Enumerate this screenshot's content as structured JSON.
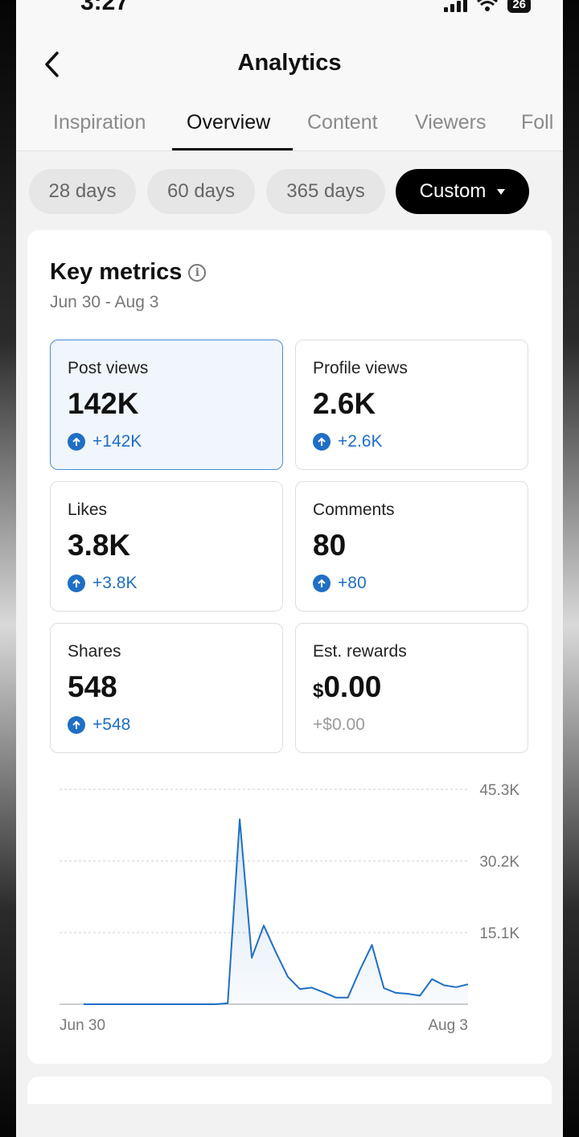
{
  "status": {
    "time": "3:27",
    "battery": "26"
  },
  "header": {
    "title": "Analytics"
  },
  "tabs": [
    {
      "label": "Inspiration"
    },
    {
      "label": "Overview"
    },
    {
      "label": "Content"
    },
    {
      "label": "Viewers"
    },
    {
      "label": "Foll"
    }
  ],
  "filters": [
    {
      "label": "28 days"
    },
    {
      "label": "60 days"
    },
    {
      "label": "365 days"
    },
    {
      "label": "Custom"
    }
  ],
  "key_metrics": {
    "title": "Key metrics",
    "date_range": "Jun 30 - Aug 3",
    "items": [
      {
        "label": "Post views",
        "value": "142K",
        "delta": "+142K"
      },
      {
        "label": "Profile views",
        "value": "2.6K",
        "delta": "+2.6K"
      },
      {
        "label": "Likes",
        "value": "3.8K",
        "delta": "+3.8K"
      },
      {
        "label": "Comments",
        "value": "80",
        "delta": "+80"
      },
      {
        "label": "Shares",
        "value": "548",
        "delta": "+548"
      },
      {
        "label": "Est. rewards",
        "currency": "$",
        "value": "0.00",
        "delta": "+$0.00"
      }
    ]
  },
  "colors": {
    "accent": "#1f6fc5",
    "selected_border": "#4a8bd6",
    "selected_bg": "#f1f6fd"
  },
  "chart_data": {
    "type": "area",
    "y_ticks": [
      "45.3K",
      "30.2K",
      "15.1K"
    ],
    "ylim": [
      0,
      45300
    ],
    "x_labels": [
      "Jun 30",
      "Aug 3"
    ],
    "grid": true,
    "x": [
      1,
      2,
      3,
      4,
      5,
      6,
      7,
      8,
      9,
      10,
      11,
      12,
      13,
      14,
      15,
      16,
      17,
      18,
      19,
      20,
      21,
      22,
      23,
      24,
      25,
      26,
      27,
      28,
      29,
      30,
      31,
      32,
      33,
      34,
      35
    ],
    "values": [
      0,
      0,
      0,
      0,
      0,
      0,
      0,
      0,
      0,
      0,
      0,
      0,
      0,
      0,
      200,
      39000,
      9800,
      16600,
      11000,
      5800,
      3200,
      3500,
      2500,
      1400,
      1400,
      7200,
      12500,
      3400,
      2400,
      2200,
      1800,
      5300,
      4000,
      3600,
      4200
    ]
  }
}
